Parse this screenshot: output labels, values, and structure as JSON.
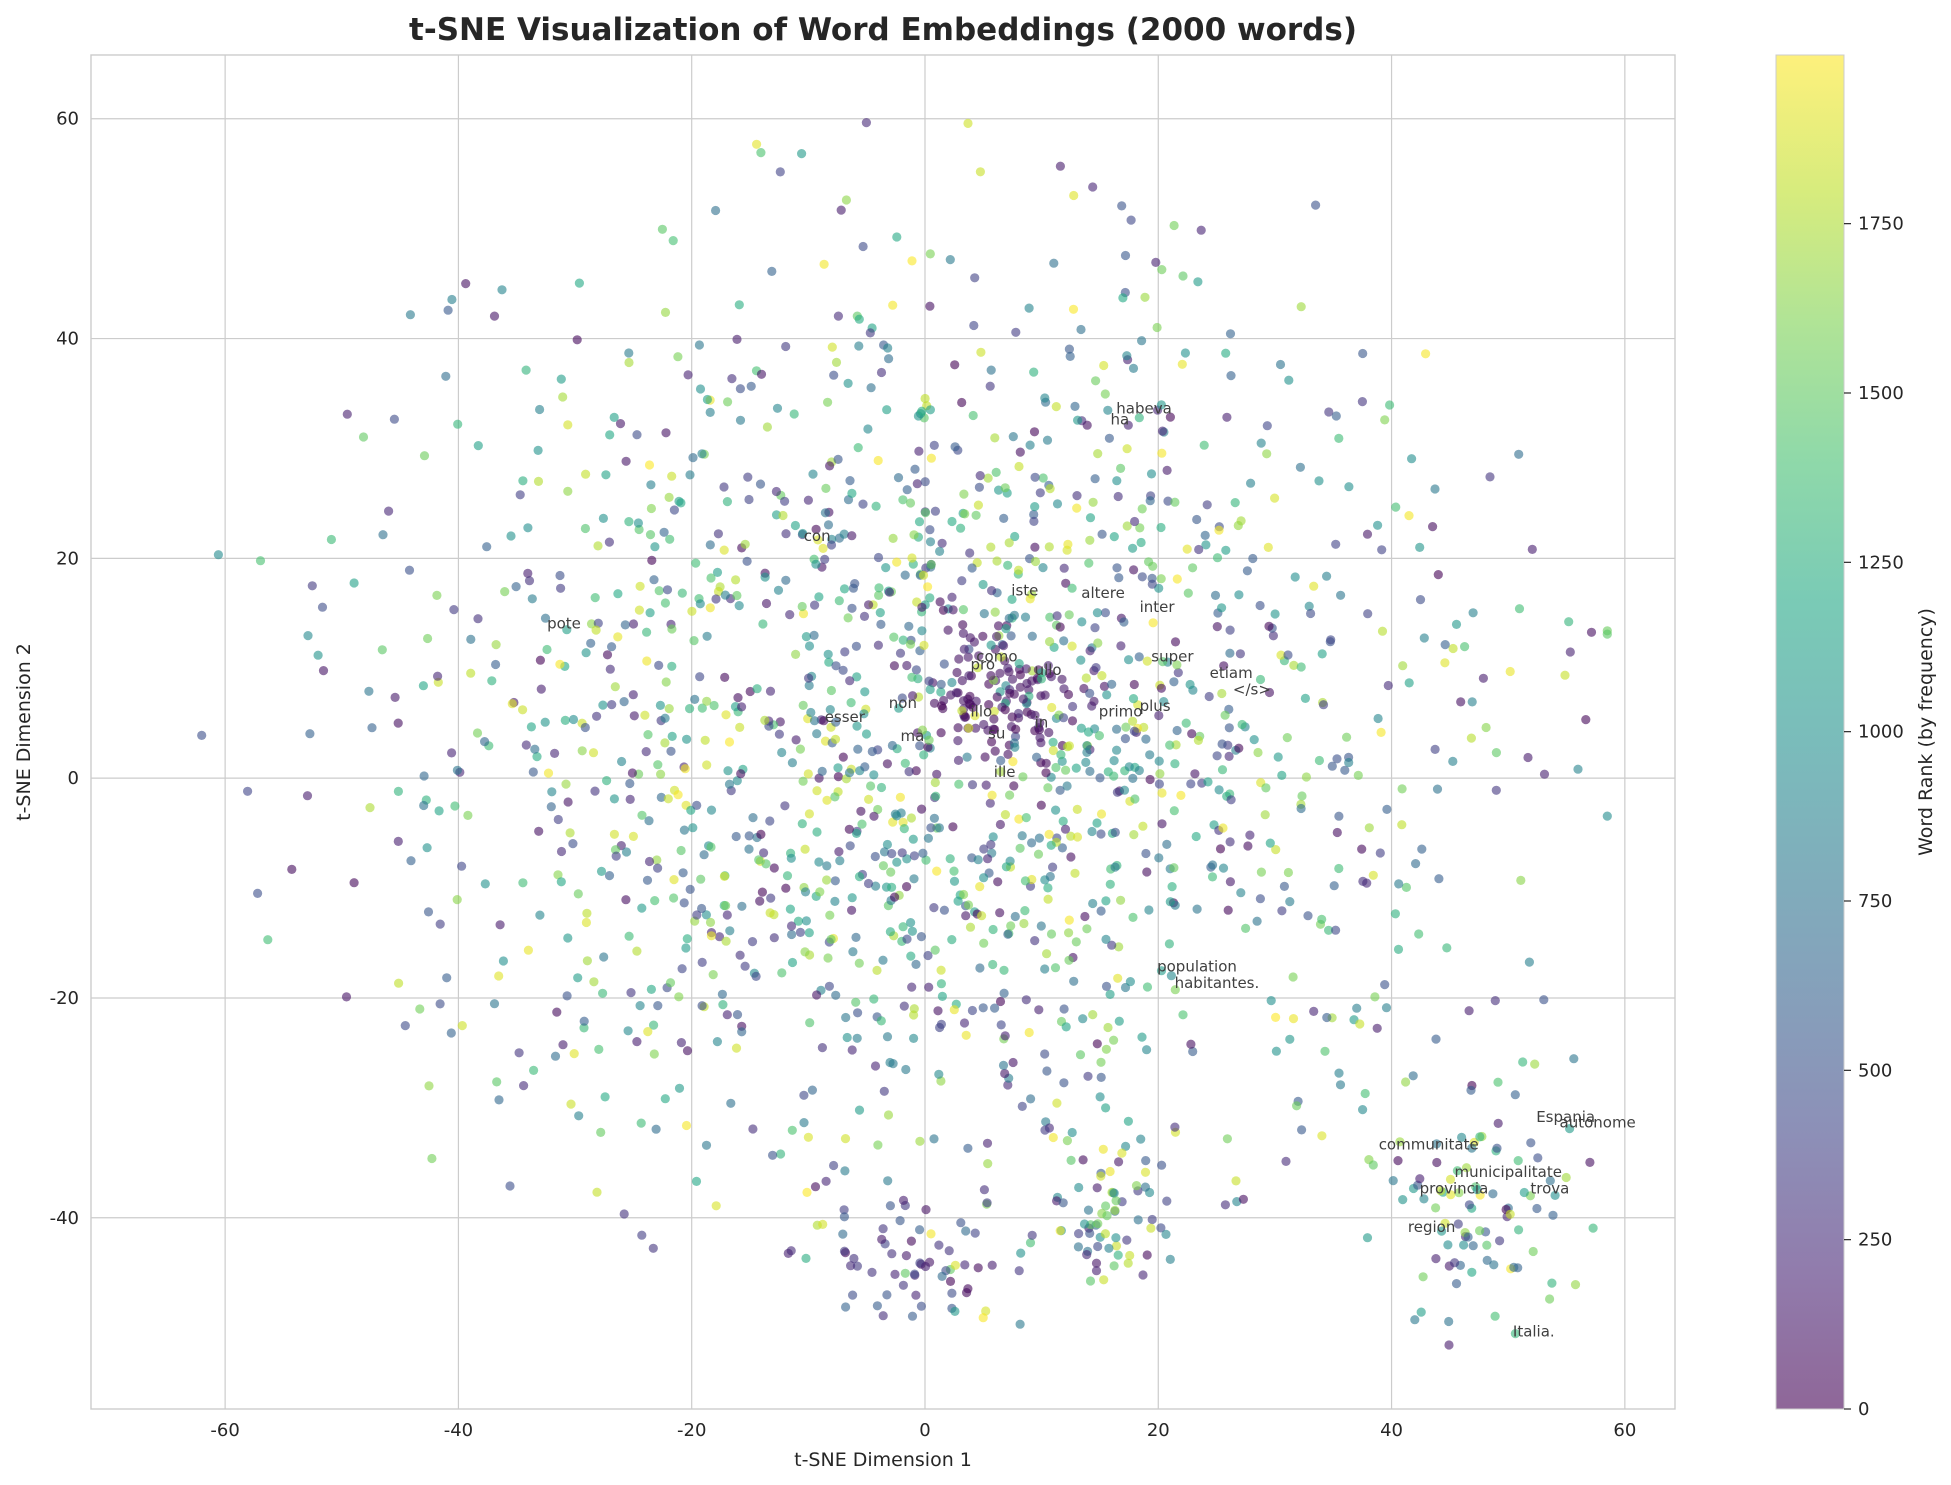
{
  "chart_data": {
    "type": "scatter",
    "title": "t-SNE Visualization of Word Embeddings (2000 words)",
    "xlabel": "t-SNE Dimension 1",
    "ylabel": "t-SNE Dimension 2",
    "xlim": [
      -71.5,
      64.3
    ],
    "ylim": [
      -57.4,
      65.8
    ],
    "xticks": [
      -60,
      -40,
      -20,
      0,
      20,
      40,
      60
    ],
    "yticks": [
      -40,
      -20,
      0,
      20,
      40,
      60
    ],
    "grid": true,
    "colorbar": {
      "label": "Word Rank (by frequency)",
      "colormap": "viridis",
      "range": [
        0,
        1999
      ],
      "ticks": [
        0,
        250,
        500,
        750,
        1000,
        1250,
        1500,
        1750
      ]
    },
    "point_count": 2000,
    "marker_alpha": 0.6,
    "annotations": [
      {
        "text": "habeva",
        "x": 16.4,
        "y": 33.2
      },
      {
        "text": "ha",
        "x": 15.9,
        "y": 32.2
      },
      {
        "text": "con",
        "x": -10.4,
        "y": 21.6
      },
      {
        "text": "iste",
        "x": 7.4,
        "y": 16.6
      },
      {
        "text": "altere",
        "x": 13.4,
        "y": 16.4
      },
      {
        "text": "inter",
        "x": 18.4,
        "y": 15.1
      },
      {
        "text": "pote",
        "x": -32.4,
        "y": 13.6
      },
      {
        "text": "super",
        "x": 19.4,
        "y": 10.6
      },
      {
        "text": "etiam",
        "x": 24.4,
        "y": 9.1
      },
      {
        "text": "</s>",
        "x": 26.4,
        "y": 7.6
      },
      {
        "text": "como",
        "x": 4.4,
        "y": 10.6
      },
      {
        "text": "pro",
        "x": 3.9,
        "y": 9.9
      },
      {
        "text": "ullo",
        "x": 9.4,
        "y": 9.4
      },
      {
        "text": "esser",
        "x": -8.6,
        "y": 5.1
      },
      {
        "text": "non",
        "x": -3.1,
        "y": 6.4
      },
      {
        "text": "primo",
        "x": 14.9,
        "y": 5.6
      },
      {
        "text": "plus",
        "x": 18.4,
        "y": 6.1
      },
      {
        "text": "illo",
        "x": 3.9,
        "y": 5.6
      },
      {
        "text": "ma",
        "x": -2.1,
        "y": 3.4
      },
      {
        "text": "su",
        "x": 5.4,
        "y": 3.6
      },
      {
        "text": "in",
        "x": 9.4,
        "y": 4.6
      },
      {
        "text": "ille",
        "x": 5.9,
        "y": 0.1
      },
      {
        "text": "population",
        "x": 19.9,
        "y": -17.6
      },
      {
        "text": "habitantes.",
        "x": 21.4,
        "y": -19.1
      },
      {
        "text": "Espania",
        "x": 52.4,
        "y": -31.3
      },
      {
        "text": "autonome",
        "x": 54.4,
        "y": -31.8
      },
      {
        "text": "communitate",
        "x": 38.9,
        "y": -33.8
      },
      {
        "text": "municipalitate",
        "x": 45.4,
        "y": -36.3
      },
      {
        "text": "provincia",
        "x": 42.4,
        "y": -37.8
      },
      {
        "text": "trova",
        "x": 51.9,
        "y": -37.8
      },
      {
        "text": "region",
        "x": 41.4,
        "y": -41.3
      },
      {
        "text": "Italia.",
        "x": 50.4,
        "y": -50.8
      }
    ]
  }
}
